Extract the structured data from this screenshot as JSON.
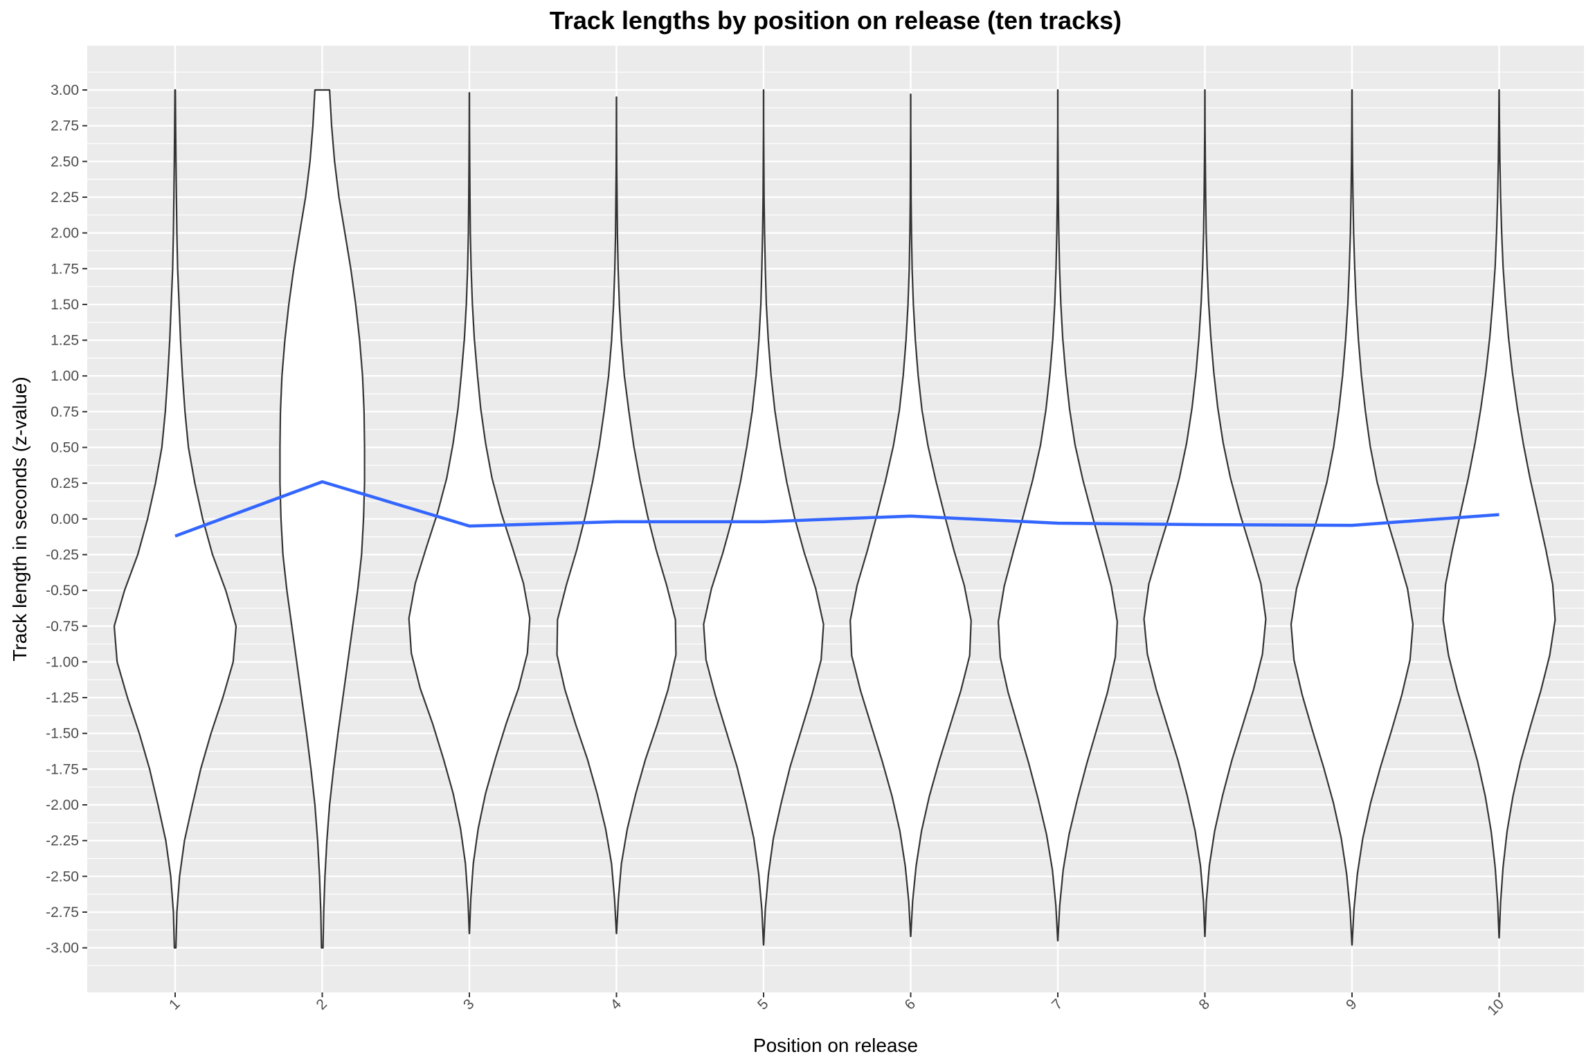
{
  "chart_data": {
    "type": "violin",
    "title": "Track lengths by position on release (ten tracks)",
    "xlabel": "Position on release",
    "ylabel": "Track length in seconds (z-value)",
    "categories": [
      "1",
      "2",
      "3",
      "4",
      "5",
      "6",
      "7",
      "8",
      "9",
      "10"
    ],
    "ylim": [
      -3.3,
      3.3
    ],
    "y_ticks": [
      "3.00",
      "2.75",
      "2.50",
      "2.25",
      "2.00",
      "1.75",
      "1.50",
      "1.25",
      "1.00",
      "0.75",
      "0.50",
      "0.25",
      "0.00",
      "-0.25",
      "-0.50",
      "-0.75",
      "-1.00",
      "-1.25",
      "-1.50",
      "-1.75",
      "-2.00",
      "-2.25",
      "-2.50",
      "-2.75",
      "-3.00"
    ],
    "grid": true,
    "x_tick_label_rotation": "angled",
    "violins": [
      {
        "category": "1",
        "ymin": -3.0,
        "ymax": 3.0,
        "widths": [
          0.15,
          0.35,
          0.9,
          1.9,
          3.5,
          5.2,
          7.3,
          9.7,
          11.8,
          12.4,
          10.3,
          7.6,
          5.6,
          4.0,
          2.7,
          2.0,
          1.5,
          1.1,
          0.8,
          0.5,
          0.35,
          0.25,
          0.17,
          0.1,
          0.04
        ]
      },
      {
        "category": "2",
        "ymin": -3.0,
        "ymax": 3.0,
        "widths": [
          0.15,
          0.3,
          0.55,
          0.95,
          1.5,
          2.3,
          3.2,
          4.2,
          5.2,
          6.2,
          7.2,
          8.0,
          8.4,
          8.6,
          8.6,
          8.5,
          8.2,
          7.6,
          6.8,
          5.8,
          4.6,
          3.4,
          2.5,
          1.9,
          1.5
        ]
      },
      {
        "category": "3",
        "ymin": -2.9,
        "ymax": 2.98,
        "widths": [
          0.02,
          0.3,
          0.8,
          1.8,
          3.3,
          5.3,
          7.5,
          10.0,
          11.8,
          12.3,
          11.0,
          8.8,
          6.5,
          4.6,
          3.3,
          2.3,
          1.6,
          1.0,
          0.6,
          0.35,
          0.2,
          0.12,
          0.07,
          0.03,
          0.01
        ]
      },
      {
        "category": "4",
        "ymin": -2.9,
        "ymax": 2.95,
        "widths": [
          0.02,
          0.4,
          1.0,
          2.2,
          3.9,
          5.9,
          8.3,
          10.5,
          12.1,
          12.0,
          10.2,
          8.1,
          6.3,
          4.8,
          3.5,
          2.5,
          1.6,
          1.0,
          0.6,
          0.35,
          0.2,
          0.12,
          0.06,
          0.03,
          0.01
        ]
      },
      {
        "category": "5",
        "ymin": -2.98,
        "ymax": 3.0,
        "widths": [
          0.02,
          0.35,
          1.0,
          2.0,
          3.6,
          5.4,
          7.6,
          9.8,
          11.7,
          12.2,
          10.6,
          8.3,
          6.3,
          4.7,
          3.4,
          2.3,
          1.5,
          0.95,
          0.55,
          0.35,
          0.2,
          0.1,
          0.05,
          0.02,
          0.01
        ]
      },
      {
        "category": "6",
        "ymin": -2.92,
        "ymax": 2.97,
        "widths": [
          0.02,
          0.4,
          1.1,
          2.2,
          3.8,
          5.8,
          8.0,
          10.2,
          12.0,
          12.3,
          10.9,
          8.8,
          6.9,
          5.1,
          3.5,
          2.3,
          1.5,
          0.95,
          0.55,
          0.3,
          0.17,
          0.09,
          0.05,
          0.02,
          0.01
        ]
      },
      {
        "category": "7",
        "ymin": -2.95,
        "ymax": 3.0,
        "widths": [
          0.02,
          0.4,
          1.1,
          2.3,
          4.0,
          5.9,
          8.0,
          10.1,
          11.7,
          12.1,
          10.9,
          9.0,
          7.0,
          5.1,
          3.5,
          2.4,
          1.6,
          1.0,
          0.6,
          0.35,
          0.2,
          0.1,
          0.05,
          0.02,
          0.01
        ]
      },
      {
        "category": "8",
        "ymin": -2.92,
        "ymax": 3.0,
        "widths": [
          0.02,
          0.3,
          0.9,
          2.0,
          3.6,
          5.5,
          7.7,
          9.9,
          11.7,
          12.4,
          11.4,
          9.3,
          7.1,
          5.2,
          3.7,
          2.6,
          1.8,
          1.2,
          0.75,
          0.45,
          0.25,
          0.15,
          0.08,
          0.03,
          0.01
        ]
      },
      {
        "category": "9",
        "ymin": -2.98,
        "ymax": 3.0,
        "widths": [
          0.02,
          0.4,
          1.1,
          2.2,
          3.8,
          5.8,
          8.0,
          10.1,
          11.8,
          12.4,
          11.3,
          9.2,
          7.0,
          5.1,
          3.7,
          2.7,
          1.9,
          1.3,
          0.85,
          0.55,
          0.33,
          0.2,
          0.1,
          0.04,
          0.01
        ]
      },
      {
        "category": "10",
        "ymin": -2.93,
        "ymax": 3.0,
        "widths": [
          0.02,
          0.3,
          0.8,
          1.6,
          2.8,
          4.4,
          6.4,
          8.5,
          10.3,
          11.4,
          10.9,
          9.5,
          7.9,
          6.3,
          4.9,
          3.7,
          2.7,
          1.9,
          1.3,
          0.8,
          0.5,
          0.3,
          0.16,
          0.07,
          0.02
        ]
      }
    ],
    "series": [
      {
        "type": "line",
        "color": "#3366ff",
        "x": [
          "1",
          "2",
          "3",
          "4",
          "5",
          "6",
          "7",
          "8",
          "9",
          "10"
        ],
        "y": [
          -0.12,
          0.26,
          -0.05,
          -0.02,
          -0.02,
          0.02,
          -0.03,
          -0.04,
          -0.045,
          0.03
        ]
      }
    ],
    "colors": {
      "panel": "#ebebeb",
      "grid": "#ffffff",
      "violin_fill": "#ffffff",
      "violin_stroke": "#333333",
      "line": "#3366ff"
    }
  }
}
